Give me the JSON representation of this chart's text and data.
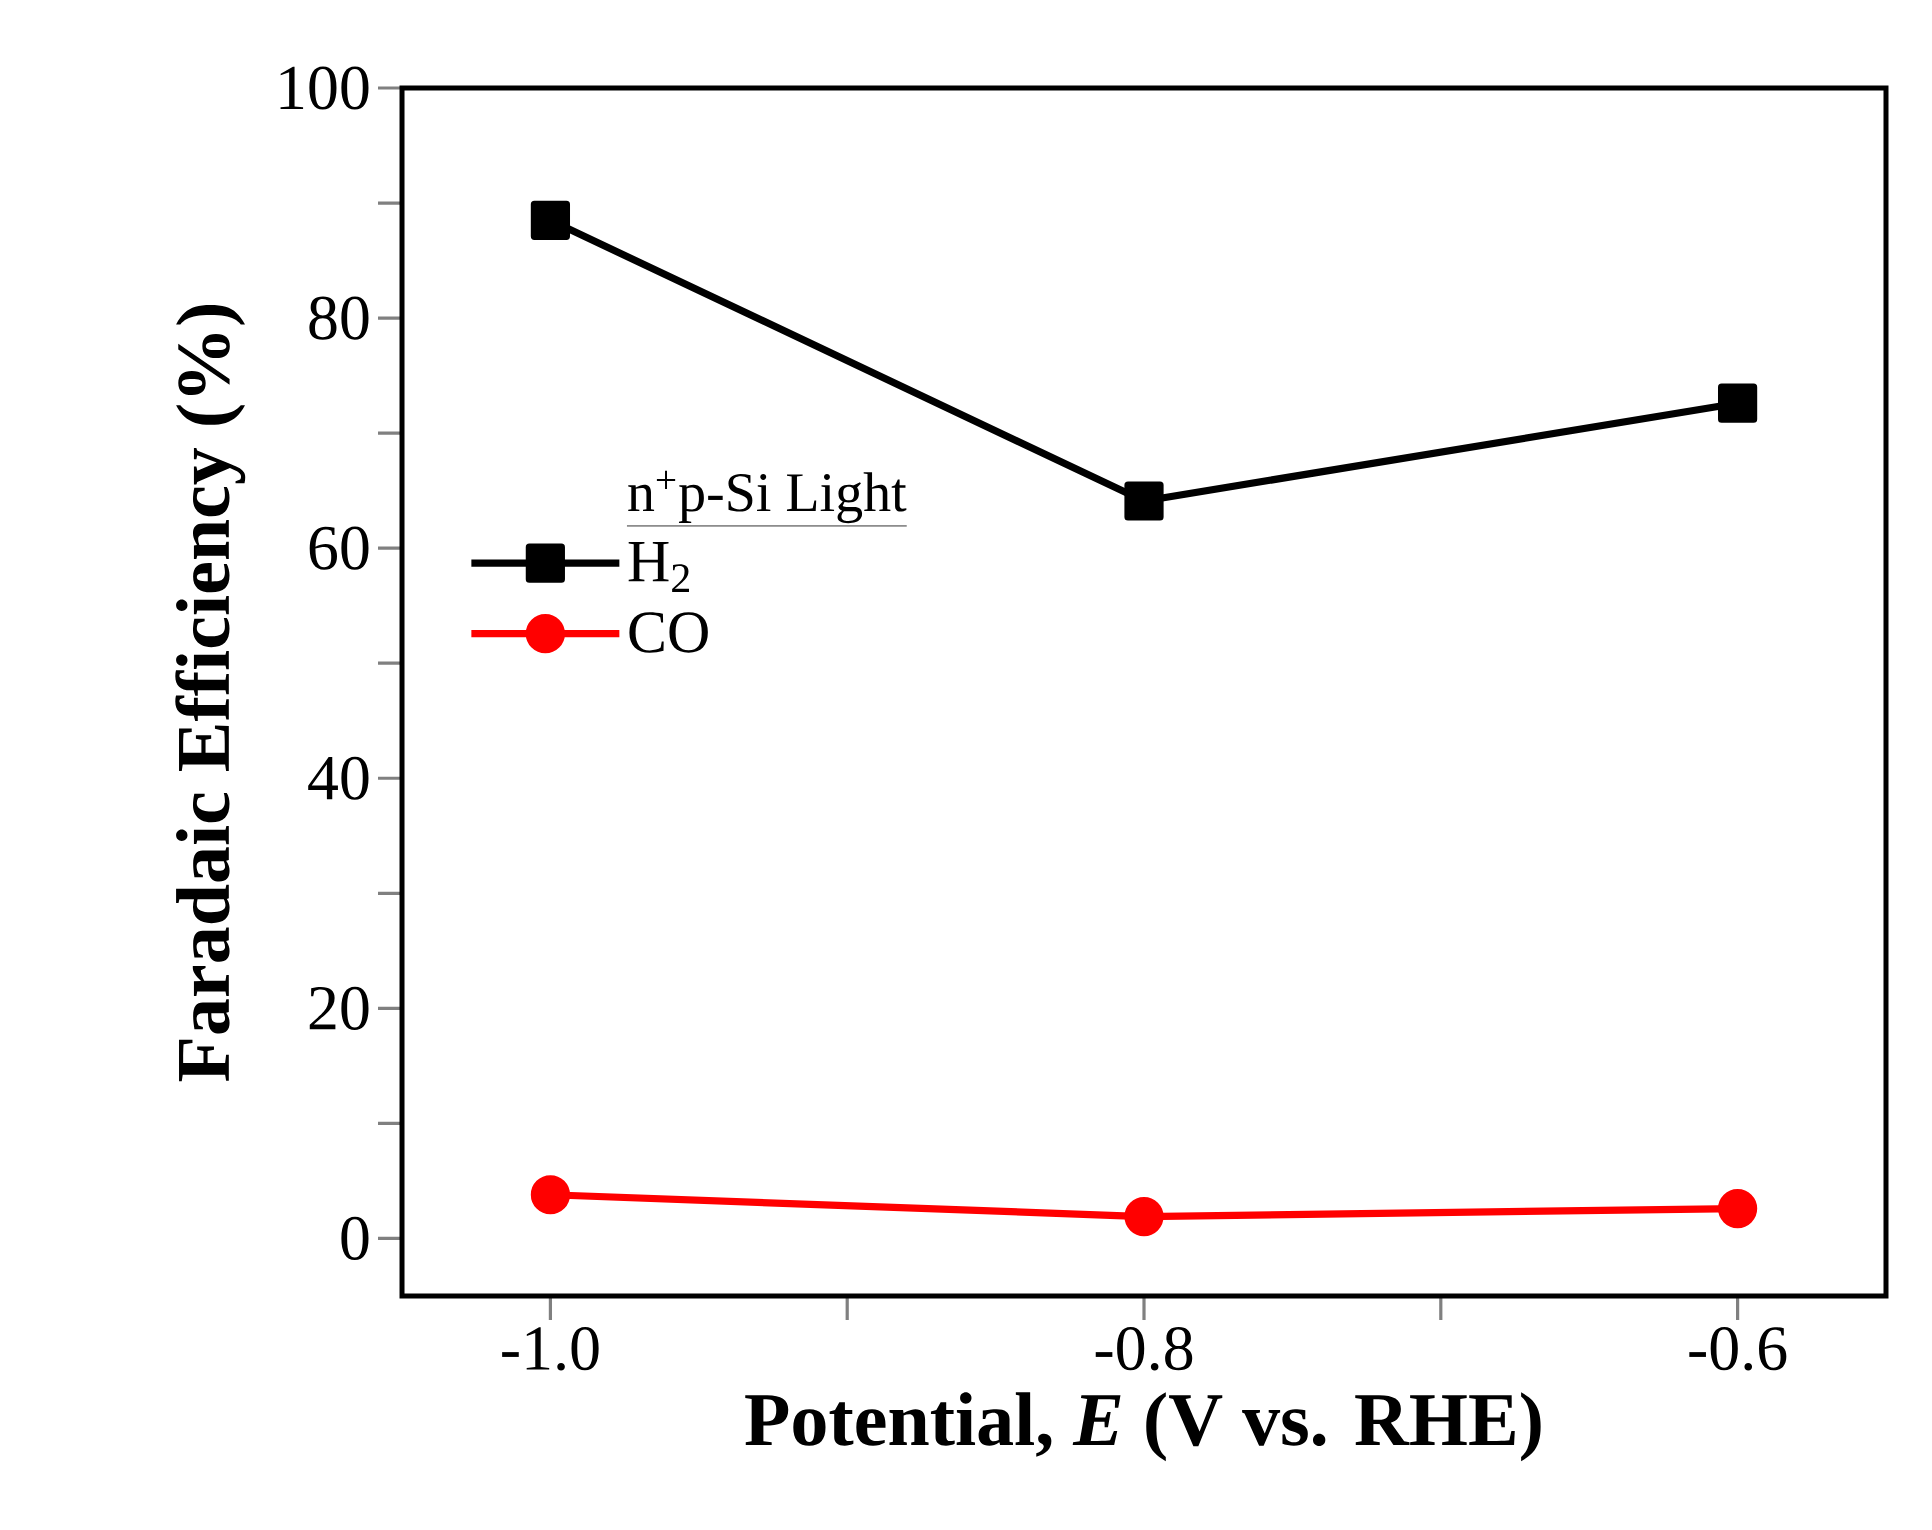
{
  "chart_data": {
    "type": "line",
    "xlabel": "Potential, *E* (V vs. RHE)",
    "ylabel": "Faradaic Efficiency (%)",
    "legend_title": "n$^{+}$p-Si Light",
    "legend": "left",
    "x": [
      -1.0,
      -0.8,
      -0.6
    ],
    "series": [
      {
        "name": "H$_{2}$",
        "color": "#000000",
        "marker": "square",
        "values": [
          88.5,
          64.1,
          72.6
        ]
      },
      {
        "name": "CO",
        "color": "#ff0000",
        "marker": "circle",
        "values": [
          3.8,
          1.9,
          2.6
        ]
      }
    ],
    "xlim": [
      -1.05,
      -0.55
    ],
    "xticks": [
      {
        "value": -1,
        "label": "-1.0"
      },
      {
        "value": -0.9,
        "label": null
      },
      -0.8,
      {
        "value": -0.7,
        "label": null
      },
      -0.6
    ],
    "ylim": [
      -5,
      100
    ],
    "yticks": [
      0,
      {
        "value": 10,
        "label": null
      },
      20,
      {
        "value": 30,
        "label": null
      },
      40,
      {
        "value": 50,
        "label": null
      },
      60,
      {
        "value": 70,
        "label": null
      },
      80,
      {
        "value": 90,
        "label": null
      },
      100
    ]
  }
}
